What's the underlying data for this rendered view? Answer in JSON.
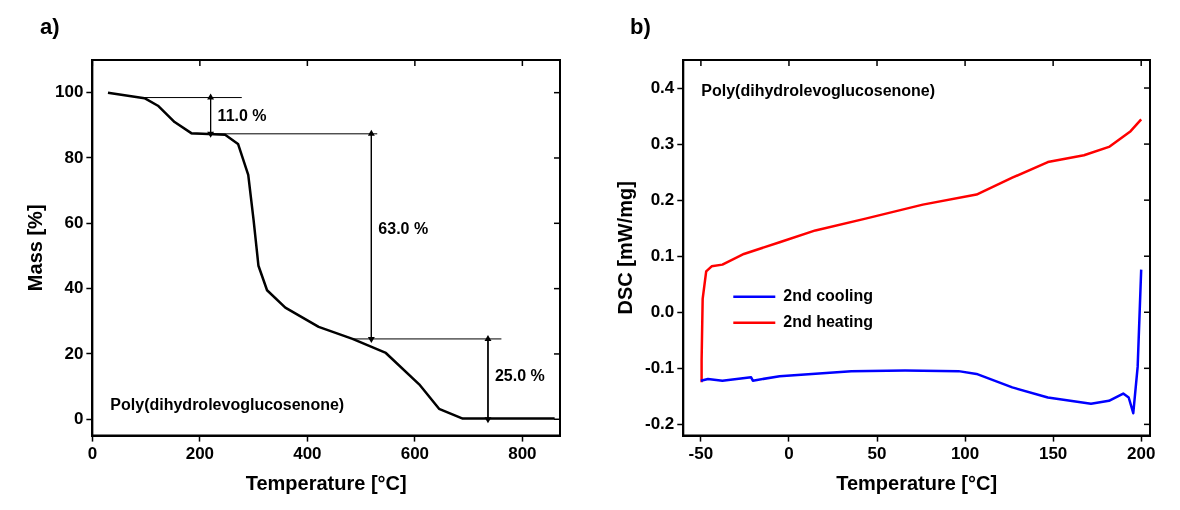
{
  "chart_data": [
    {
      "type": "line",
      "title": "a)",
      "xlabel": "Temperature [°C]",
      "ylabel": "Mass [%]",
      "xlim": [
        0,
        870
      ],
      "ylim": [
        -5,
        110
      ],
      "xticks": [
        0,
        200,
        400,
        600,
        800
      ],
      "yticks": [
        0,
        20,
        40,
        60,
        80,
        100
      ],
      "grid": false,
      "annotations": [
        "Poly(dihydrolevoglucosenone)",
        {
          "text": "11.0 %",
          "x": 220,
          "y": 92.7
        },
        {
          "text": "63.0 %",
          "x": 519,
          "y": 58
        },
        {
          "text": "25.0 %",
          "x": 736,
          "y": 13
        }
      ],
      "series": [
        {
          "color": "#000000",
          "x": [
            29,
            97,
            122,
            153,
            184,
            247,
            271,
            290,
            300,
            309,
            325,
            359,
            421,
            484,
            546,
            608,
            645,
            689,
            860
          ],
          "values": [
            100,
            98.3,
            96,
            91,
            87.6,
            87.1,
            84.3,
            74.8,
            60.9,
            47,
            39.5,
            34.2,
            28.3,
            24.6,
            20.3,
            10.7,
            3.2,
            0.2,
            0.2
          ]
        },
        {
          "color": "#000000",
          "x": [
            97,
            278
          ],
          "values": [
            98.5,
            98.5
          ]
        },
        {
          "color": "#000000",
          "x": [
            184,
            530
          ],
          "values": [
            87.4,
            87.4
          ]
        },
        {
          "color": "#000000",
          "x": [
            484,
            761
          ],
          "values": [
            24.6,
            24.6
          ]
        },
        {
          "color": "#000000",
          "marker": "triangle",
          "x": [
            220,
            220
          ],
          "values": [
            98.5,
            87.4
          ]
        },
        {
          "color": "#000000",
          "marker": "triangle",
          "x": [
            519,
            519
          ],
          "values": [
            87.4,
            24.6
          ]
        },
        {
          "color": "#000000",
          "marker": "triangle",
          "x": [
            736,
            736
          ],
          "values": [
            24.6,
            0
          ]
        }
      ]
    },
    {
      "type": "line",
      "title": "b)",
      "xlabel": "Temperature [°C]",
      "ylabel": "DSC [mW/mg]",
      "xlim": [
        -60,
        205
      ],
      "ylim": [
        -0.22,
        0.45
      ],
      "xticks": [
        -50,
        0,
        50,
        100,
        150,
        200
      ],
      "yticks": [
        -0.2,
        -0.1,
        {
          "value": 0,
          "label": "0.0"
        },
        0.1,
        0.2,
        0.3,
        0.4
      ],
      "grid": false,
      "legend": "left",
      "annotations": [
        "Poly(dihydrolevoglucosenone)"
      ],
      "series": [
        {
          "name": "2nd cooling",
          "color": "#0000ff",
          "x": [
            -50,
            -46,
            -37.8,
            -21.5,
            -20.5,
            -5.3,
            35.4,
            65.9,
            96.3,
            106.5,
            126.8,
            147,
            171.5,
            181.7,
            189.8,
            192.9,
            195.5,
            198,
            200
          ],
          "values": [
            -0.122,
            -0.119,
            -0.122,
            -0.116,
            -0.122,
            -0.114,
            -0.105,
            -0.104,
            -0.105,
            -0.11,
            -0.134,
            -0.152,
            -0.163,
            -0.158,
            -0.145,
            -0.152,
            -0.18,
            -0.097,
            0.076
          ]
        },
        {
          "name": "2nd heating",
          "color": "#ff0000",
          "x": [
            -49.6,
            -49.6,
            -49,
            -47,
            -43.9,
            -37.8,
            -25.6,
            -5.3,
            15,
            43.5,
            76,
            106.5,
            126.8,
            147,
            167.5,
            181.7,
            194,
            200
          ],
          "values": [
            -0.125,
            -0.085,
            0.024,
            0.073,
            0.082,
            0.085,
            0.104,
            0.125,
            0.146,
            0.167,
            0.192,
            0.21,
            0.24,
            0.268,
            0.28,
            0.295,
            0.323,
            0.344
          ]
        }
      ]
    }
  ]
}
